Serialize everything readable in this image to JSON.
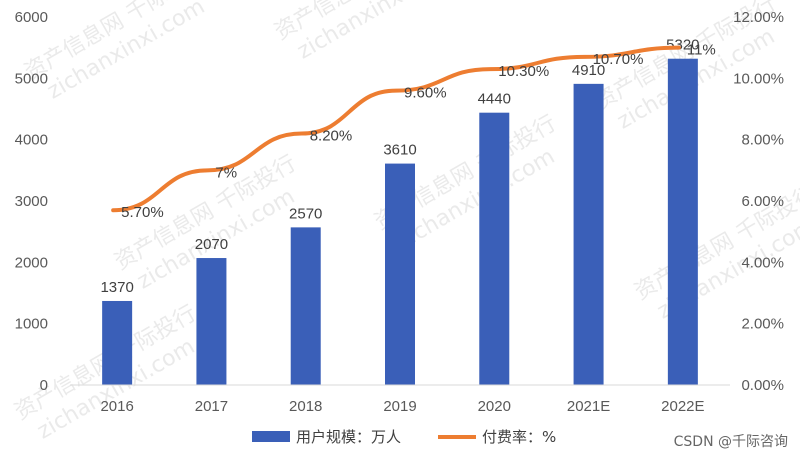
{
  "chart_data": {
    "type": "bar",
    "categories": [
      "2016",
      "2017",
      "2018",
      "2019",
      "2020",
      "2021E",
      "2022E"
    ],
    "series": [
      {
        "name": "用户规模：万人",
        "type": "bar",
        "axis": "left",
        "color": "#3a5fb8",
        "values": [
          1370,
          2070,
          2570,
          3610,
          4440,
          4910,
          5320
        ],
        "labels": [
          "1370",
          "2070",
          "2570",
          "3610",
          "4440",
          "4910",
          "5320"
        ]
      },
      {
        "name": "付费率：%",
        "type": "line",
        "axis": "right",
        "color": "#ed7d31",
        "values": [
          5.7,
          7.0,
          8.2,
          9.6,
          10.3,
          10.7,
          11.0
        ],
        "labels": [
          "5.70%",
          "7%",
          "8.20%",
          "9.60%",
          "10.30%",
          "10.70%",
          "11%"
        ]
      }
    ],
    "y_left": {
      "min": 0,
      "max": 6000,
      "ticks": [
        "0",
        "1000",
        "2000",
        "3000",
        "4000",
        "5000",
        "6000"
      ]
    },
    "y_right": {
      "min": 0,
      "max": 12,
      "ticks": [
        "0.00%",
        "2.00%",
        "4.00%",
        "6.00%",
        "8.00%",
        "10.00%",
        "12.00%"
      ]
    },
    "title": "",
    "xlabel": "",
    "ylabel": "",
    "grid": false,
    "legend_position": "bottom"
  },
  "watermark": {
    "line1": "资产信息网 千际投行",
    "line2": "zichanxinxi.com"
  },
  "credit": "CSDN @千际咨询"
}
